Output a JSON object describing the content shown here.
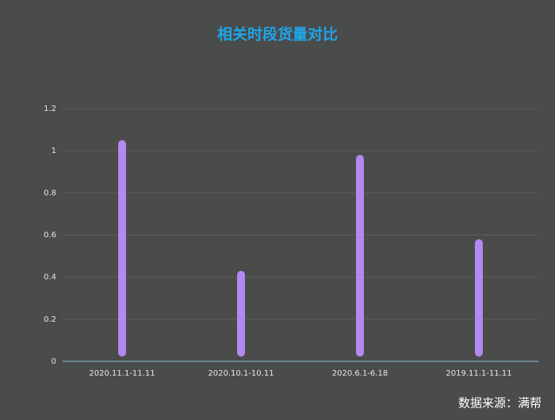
{
  "chart_data": {
    "type": "bar",
    "title": "相关时段货量对比",
    "categories": [
      "2020.11.1-11.11",
      "2020.10.1-10.11",
      "2020.6.1-6.18",
      "2019.11.1-11.11"
    ],
    "values": [
      1.05,
      0.43,
      0.98,
      0.58
    ],
    "color": "#b388f0",
    "ylim": [
      0,
      1.2
    ],
    "yticks": [
      0,
      0.2,
      0.4,
      0.6,
      0.8,
      1,
      1.2
    ],
    "grid": true,
    "source": "数据来源：满帮"
  }
}
